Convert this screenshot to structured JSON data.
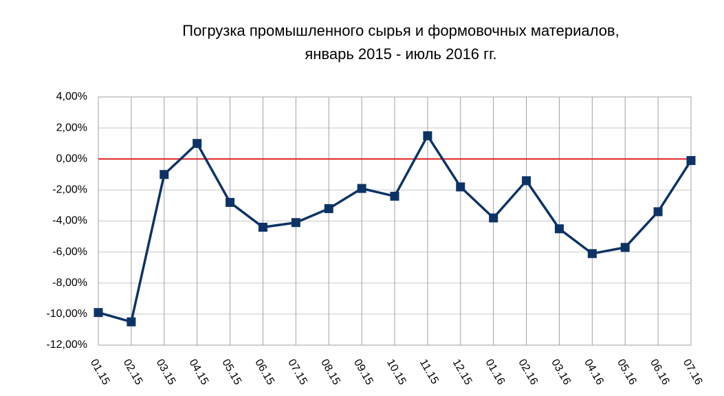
{
  "chart_data": {
    "type": "line",
    "title": [
      "Погрузка промышленного сырья и формовочных материалов,",
      "январь 2015 - июль 2016 гг."
    ],
    "categories": [
      "01.15",
      "02.15",
      "03.15",
      "04.15",
      "05.15",
      "06.15",
      "07.15",
      "08.15",
      "09.15",
      "10.15",
      "11.15",
      "12.15",
      "01.16",
      "02.16",
      "03.16",
      "04.16",
      "05.16",
      "06.16",
      "07.16"
    ],
    "values": [
      -9.9,
      -10.5,
      -1.0,
      1.0,
      -2.8,
      -4.4,
      -4.1,
      -3.2,
      -1.9,
      -2.4,
      1.5,
      -1.8,
      -3.8,
      -1.4,
      -4.5,
      -6.1,
      -5.7,
      -3.4,
      -0.1
    ],
    "color": "#0d3366",
    "ylim": [
      -12,
      4
    ],
    "yticks": [
      {
        "value": -12,
        "label": "-12,00%"
      },
      {
        "value": -10,
        "label": "-10,00%"
      },
      {
        "value": -8,
        "label": "-8,00%"
      },
      {
        "value": -6,
        "label": "-6,00%"
      },
      {
        "value": -4,
        "label": "-4,00%"
      },
      {
        "value": -2,
        "label": "-2,00%"
      },
      {
        "value": 0,
        "label": "0,00%"
      },
      {
        "value": 2,
        "label": "2,00%"
      },
      {
        "value": 4,
        "label": "4,00%"
      }
    ],
    "grid": true,
    "reference_line": {
      "value": 0,
      "color": "#e02020"
    }
  }
}
